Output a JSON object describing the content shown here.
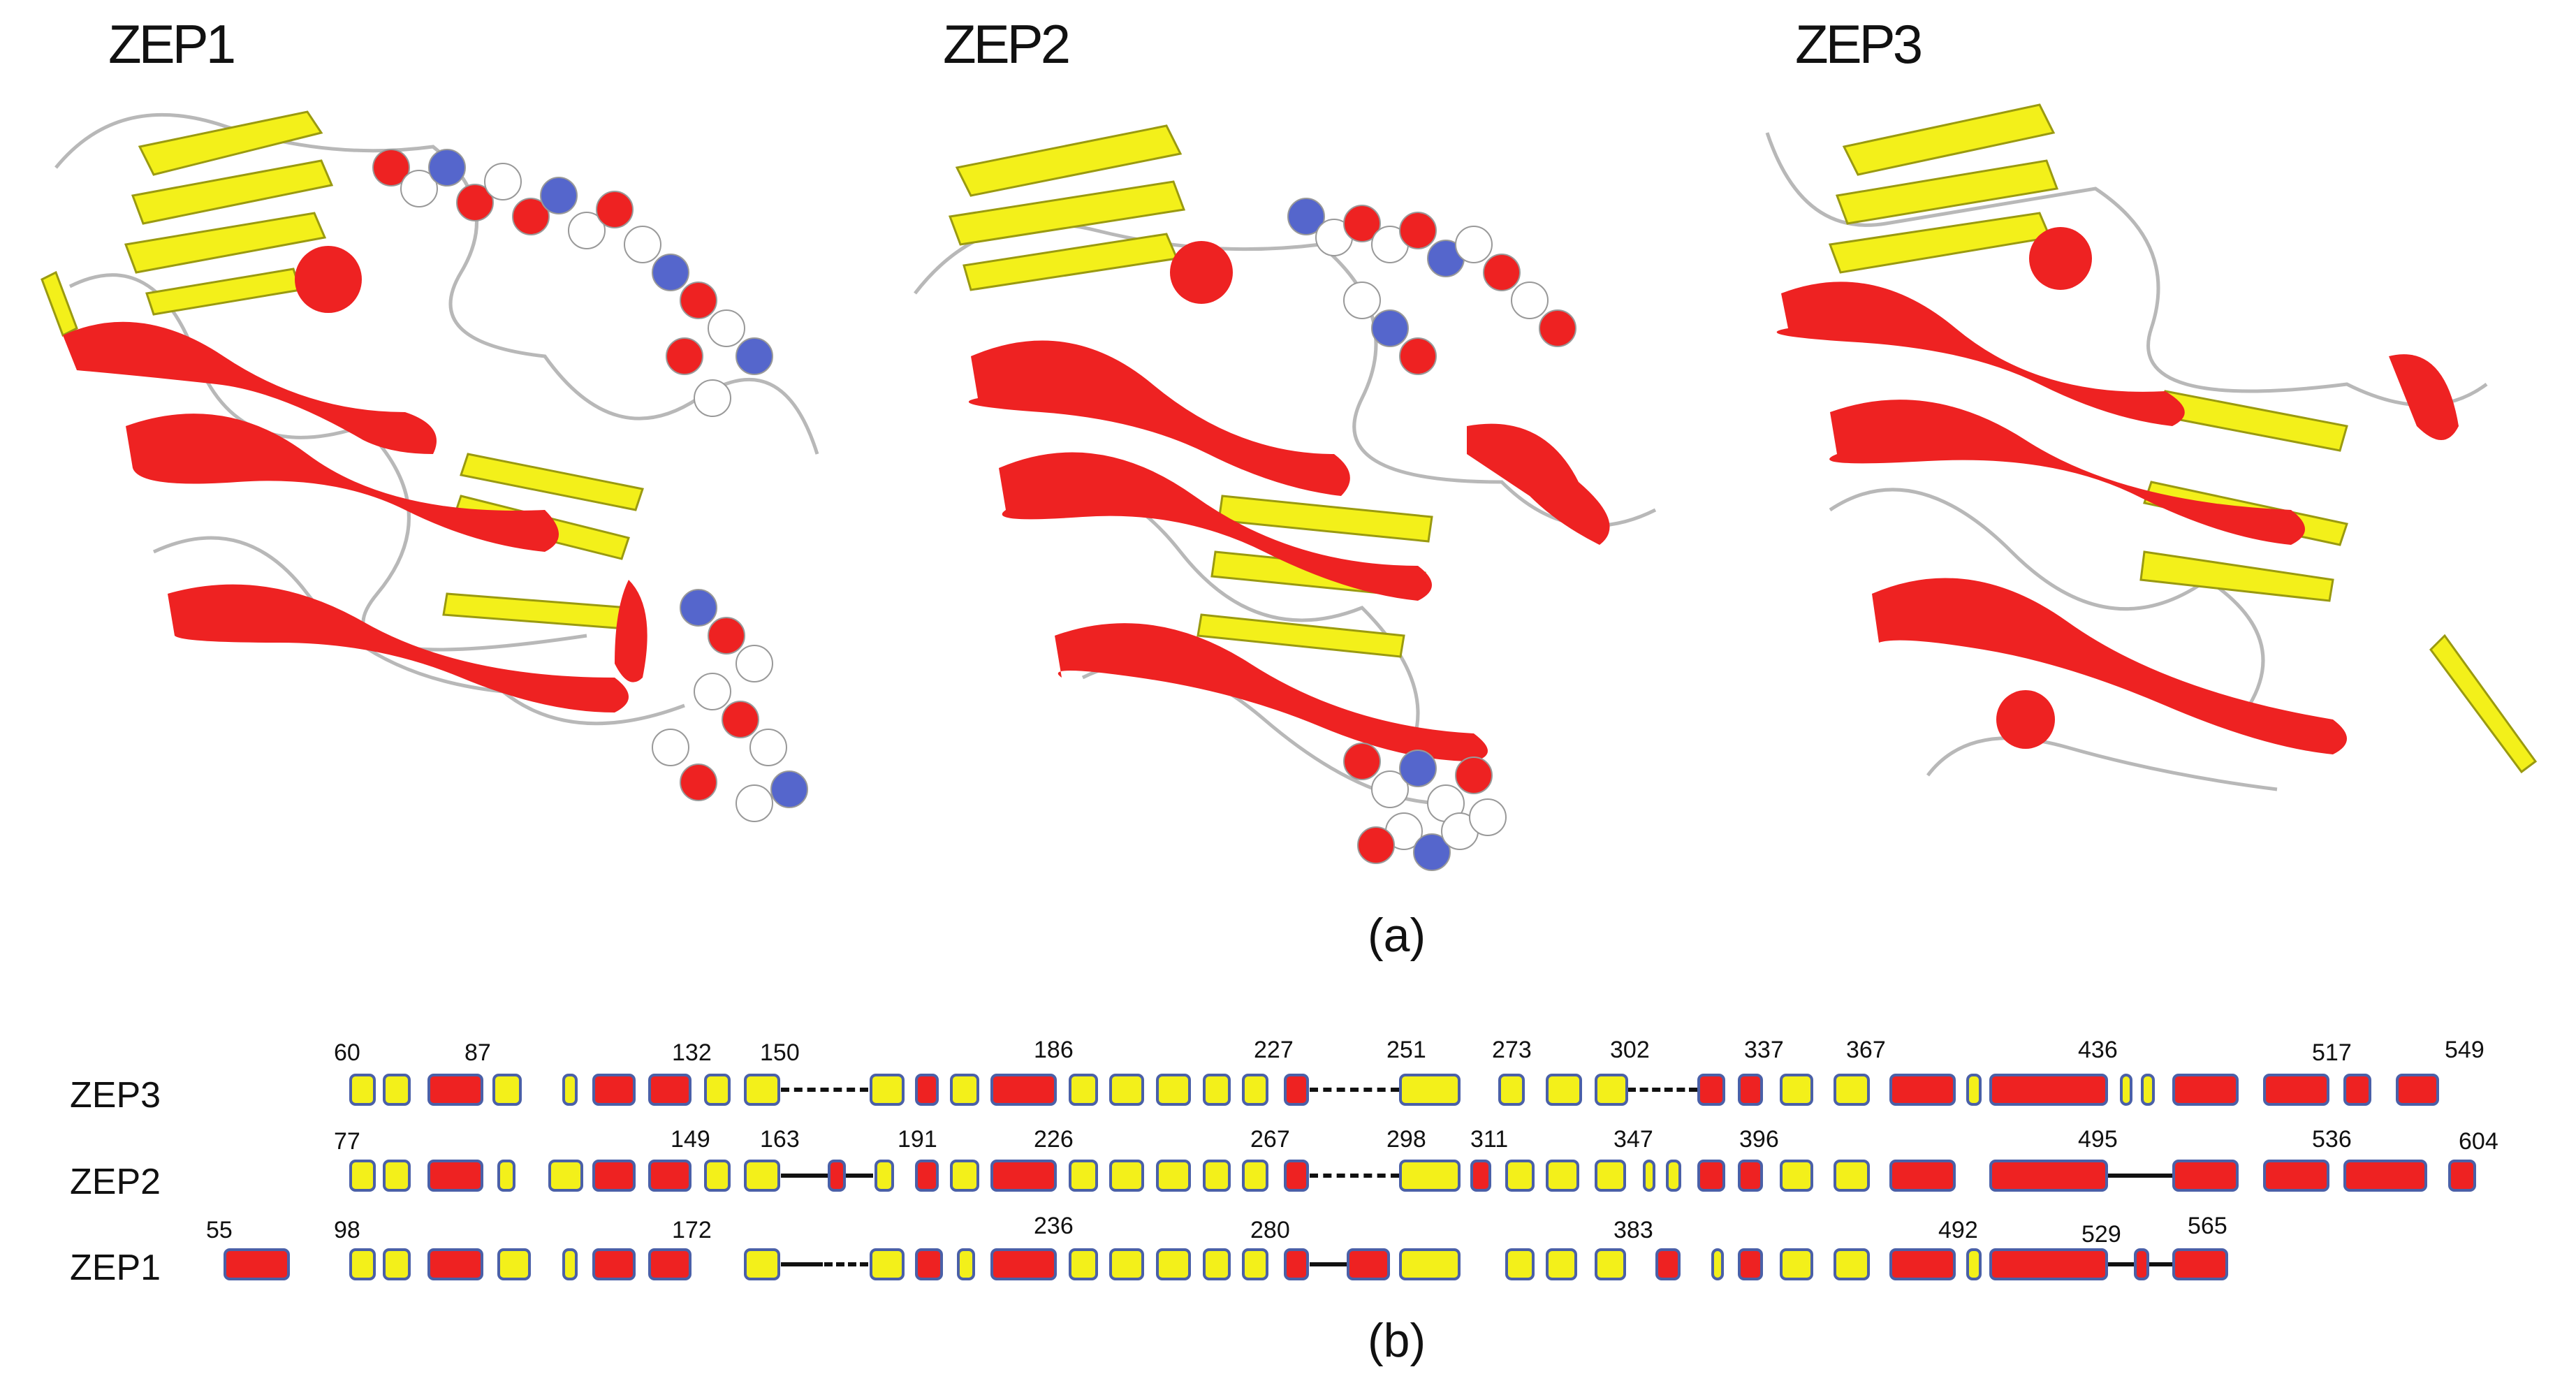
{
  "panel_a": {
    "caption": "(a)",
    "structures": [
      {
        "title": "ZEP1"
      },
      {
        "title": "ZEP2"
      },
      {
        "title": "ZEP3"
      }
    ]
  },
  "panel_b": {
    "caption": "(b)",
    "colors": {
      "helix": "#ee2222",
      "strand": "#f3f01a",
      "border": "#4a60a8"
    },
    "rows": [
      {
        "label": "ZEP3",
        "numbers": [
          "60",
          "87",
          "132",
          "150",
          "186",
          "227",
          "251",
          "273",
          "302",
          "337",
          "367",
          "436",
          "517",
          "549"
        ]
      },
      {
        "label": "ZEP2",
        "numbers": [
          "77",
          "149",
          "163",
          "191",
          "226",
          "267",
          "298",
          "311",
          "347",
          "396",
          "495",
          "536",
          "604"
        ]
      },
      {
        "label": "ZEP1",
        "numbers": [
          "55",
          "98",
          "172",
          "236",
          "280",
          "383",
          "492",
          "529",
          "565"
        ]
      }
    ]
  }
}
